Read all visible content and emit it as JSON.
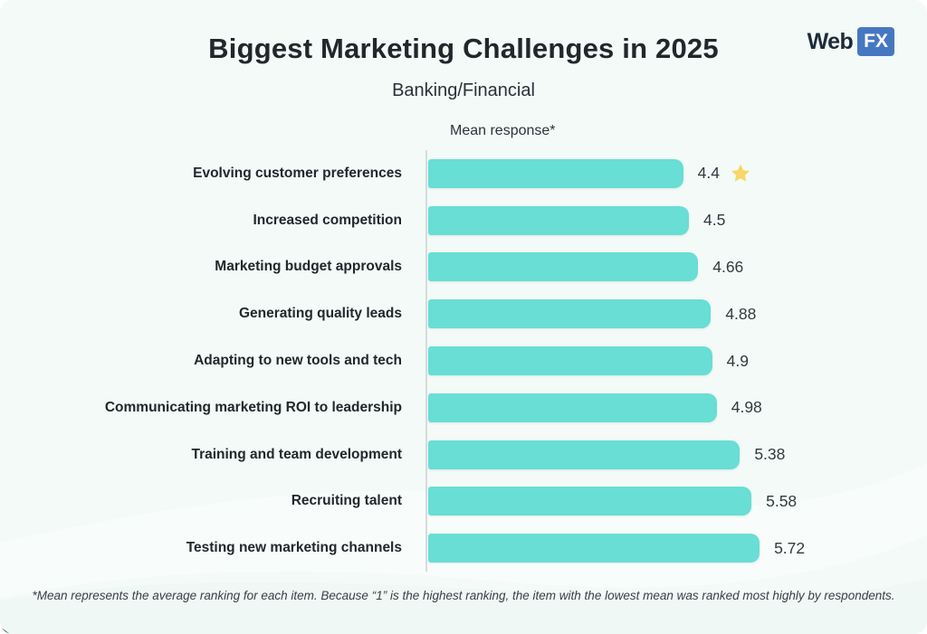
{
  "header": {
    "title": "Biggest Marketing Challenges in 2025",
    "subtitle": "Banking/Financial"
  },
  "logo": {
    "text_web": "Web",
    "text_fx": "FX",
    "fx_background": "#4678c1"
  },
  "chart_data": {
    "type": "bar",
    "orientation": "horizontal",
    "axis_label": "Mean response*",
    "categories": [
      "Evolving customer preferences",
      "Increased competition",
      "Marketing budget approvals",
      "Generating quality leads",
      "Adapting to new tools and tech",
      "Communicating marketing ROI to leadership",
      "Training and team development",
      "Recruiting talent",
      "Testing new marketing channels"
    ],
    "values": [
      4.4,
      4.5,
      4.66,
      4.88,
      4.9,
      4.98,
      5.38,
      5.58,
      5.72
    ],
    "value_labels": [
      "4.4",
      "4.5",
      "4.66",
      "4.88",
      "4.9",
      "4.98",
      "5.38",
      "5.58",
      "5.72"
    ],
    "highlight_index": 0,
    "highlight_marker": "star-icon",
    "bar_color": "#68ded5",
    "axis_line_color": "#d5dbe1",
    "star_color": "#fbd566",
    "xlim": [
      0,
      6
    ],
    "grid": false,
    "legend": false
  },
  "footnote": "*Mean represents the average ranking for each item. Because “1” is the highest ranking, the item with the lowest mean was ranked most highly by respondents."
}
